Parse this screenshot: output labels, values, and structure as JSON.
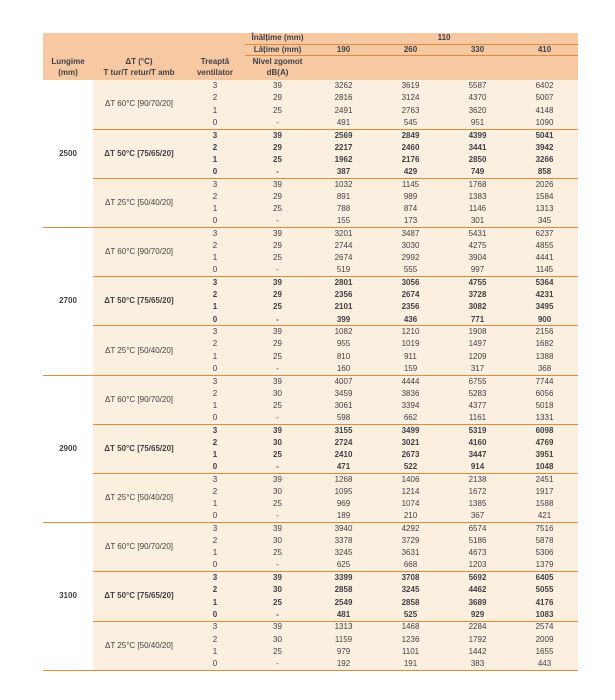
{
  "table": {
    "inaltime_label": "Înălțime (mm)",
    "inaltime_value": "110",
    "latime_label": "Lățime (mm)",
    "width_columns": [
      "190",
      "260",
      "330",
      "410"
    ],
    "col_headers": [
      [
        "Lungime",
        "(mm)"
      ],
      [
        "ΔT (°C)",
        "T tur/T retur/T amb"
      ],
      [
        "Treaptă",
        "ventilator"
      ],
      [
        "Nivel zgomot",
        "dB(A)"
      ]
    ],
    "groups": [
      {
        "lungime": "2500",
        "blocks": [
          {
            "label": "ΔT 60°C [90/70/20]",
            "bold": false,
            "rows": [
              {
                "t": "3",
                "z": "39",
                "v": [
                  "3262",
                  "3619",
                  "5587",
                  "6402"
                ]
              },
              {
                "t": "2",
                "z": "29",
                "v": [
                  "2816",
                  "3124",
                  "4370",
                  "5007"
                ]
              },
              {
                "t": "1",
                "z": "25",
                "v": [
                  "2491",
                  "2763",
                  "3620",
                  "4148"
                ]
              },
              {
                "t": "0",
                "z": "-",
                "v": [
                  "491",
                  "545",
                  "951",
                  "1090"
                ]
              }
            ]
          },
          {
            "label": "ΔT 50°C [75/65/20]",
            "bold": true,
            "rows": [
              {
                "t": "3",
                "z": "39",
                "v": [
                  "2569",
                  "2849",
                  "4399",
                  "5041"
                ]
              },
              {
                "t": "2",
                "z": "29",
                "v": [
                  "2217",
                  "2460",
                  "3441",
                  "3942"
                ]
              },
              {
                "t": "1",
                "z": "25",
                "v": [
                  "1962",
                  "2176",
                  "2850",
                  "3266"
                ]
              },
              {
                "t": "0",
                "z": "-",
                "v": [
                  "387",
                  "429",
                  "749",
                  "858"
                ]
              }
            ]
          },
          {
            "label": "ΔT 25°C [50/40/20]",
            "bold": false,
            "rows": [
              {
                "t": "3",
                "z": "39",
                "v": [
                  "1032",
                  "1145",
                  "1768",
                  "2026"
                ]
              },
              {
                "t": "2",
                "z": "29",
                "v": [
                  "891",
                  "989",
                  "1383",
                  "1584"
                ]
              },
              {
                "t": "1",
                "z": "25",
                "v": [
                  "788",
                  "874",
                  "1146",
                  "1313"
                ]
              },
              {
                "t": "0",
                "z": "-",
                "v": [
                  "155",
                  "173",
                  "301",
                  "345"
                ]
              }
            ]
          }
        ]
      },
      {
        "lungime": "2700",
        "blocks": [
          {
            "label": "ΔT 60°C [90/70/20]",
            "bold": false,
            "rows": [
              {
                "t": "3",
                "z": "39",
                "v": [
                  "3201",
                  "3487",
                  "5431",
                  "6237"
                ]
              },
              {
                "t": "2",
                "z": "29",
                "v": [
                  "2744",
                  "3030",
                  "4275",
                  "4855"
                ]
              },
              {
                "t": "1",
                "z": "25",
                "v": [
                  "2674",
                  "2992",
                  "3904",
                  "4441"
                ]
              },
              {
                "t": "0",
                "z": "-",
                "v": [
                  "519",
                  "555",
                  "997",
                  "1145"
                ]
              }
            ]
          },
          {
            "label": "ΔT 50°C [75/65/20]",
            "bold": true,
            "rows": [
              {
                "t": "3",
                "z": "39",
                "v": [
                  "2801",
                  "3056",
                  "4755",
                  "5364"
                ]
              },
              {
                "t": "2",
                "z": "29",
                "v": [
                  "2356",
                  "2674",
                  "3728",
                  "4231"
                ]
              },
              {
                "t": "1",
                "z": "25",
                "v": [
                  "2101",
                  "2356",
                  "3082",
                  "3495"
                ]
              },
              {
                "t": "0",
                "z": "-",
                "v": [
                  "399",
                  "436",
                  "771",
                  "900"
                ]
              }
            ]
          },
          {
            "label": "ΔT 25°C [50/40/20]",
            "bold": false,
            "rows": [
              {
                "t": "3",
                "z": "39",
                "v": [
                  "1082",
                  "1210",
                  "1908",
                  "2156"
                ]
              },
              {
                "t": "2",
                "z": "29",
                "v": [
                  "955",
                  "1019",
                  "1497",
                  "1682"
                ]
              },
              {
                "t": "1",
                "z": "25",
                "v": [
                  "810",
                  "911",
                  "1209",
                  "1388"
                ]
              },
              {
                "t": "0",
                "z": "-",
                "v": [
                  "160",
                  "159",
                  "317",
                  "368"
                ]
              }
            ]
          }
        ]
      },
      {
        "lungime": "2900",
        "blocks": [
          {
            "label": "ΔT 60°C [90/70/20]",
            "bold": false,
            "rows": [
              {
                "t": "3",
                "z": "39",
                "v": [
                  "4007",
                  "4444",
                  "6755",
                  "7744"
                ]
              },
              {
                "t": "2",
                "z": "30",
                "v": [
                  "3459",
                  "3836",
                  "5283",
                  "6056"
                ]
              },
              {
                "t": "1",
                "z": "25",
                "v": [
                  "3061",
                  "3394",
                  "4377",
                  "5018"
                ]
              },
              {
                "t": "0",
                "z": "-",
                "v": [
                  "598",
                  "662",
                  "1161",
                  "1331"
                ]
              }
            ]
          },
          {
            "label": "ΔT 50°C [75/65/20]",
            "bold": true,
            "rows": [
              {
                "t": "3",
                "z": "39",
                "v": [
                  "3155",
                  "3499",
                  "5319",
                  "6098"
                ]
              },
              {
                "t": "2",
                "z": "30",
                "v": [
                  "2724",
                  "3021",
                  "4160",
                  "4769"
                ]
              },
              {
                "t": "1",
                "z": "25",
                "v": [
                  "2410",
                  "2673",
                  "3447",
                  "3951"
                ]
              },
              {
                "t": "0",
                "z": "-",
                "v": [
                  "471",
                  "522",
                  "914",
                  "1048"
                ]
              }
            ]
          },
          {
            "label": "ΔT 25°C [50/40/20]",
            "bold": false,
            "rows": [
              {
                "t": "3",
                "z": "39",
                "v": [
                  "1268",
                  "1406",
                  "2138",
                  "2451"
                ]
              },
              {
                "t": "2",
                "z": "30",
                "v": [
                  "1095",
                  "1214",
                  "1672",
                  "1917"
                ]
              },
              {
                "t": "1",
                "z": "25",
                "v": [
                  "969",
                  "1074",
                  "1385",
                  "1588"
                ]
              },
              {
                "t": "0",
                "z": "-",
                "v": [
                  "189",
                  "210",
                  "367",
                  "421"
                ]
              }
            ]
          }
        ]
      },
      {
        "lungime": "3100",
        "blocks": [
          {
            "label": "ΔT 60°C [90/70/20]",
            "bold": false,
            "rows": [
              {
                "t": "3",
                "z": "39",
                "v": [
                  "3940",
                  "4292",
                  "6574",
                  "7516"
                ]
              },
              {
                "t": "2",
                "z": "30",
                "v": [
                  "3378",
                  "3729",
                  "5186",
                  "5878"
                ]
              },
              {
                "t": "1",
                "z": "25",
                "v": [
                  "3245",
                  "3631",
                  "4673",
                  "5306"
                ]
              },
              {
                "t": "0",
                "z": "-",
                "v": [
                  "625",
                  "668",
                  "1203",
                  "1379"
                ]
              }
            ]
          },
          {
            "label": "ΔT 50°C [75/65/20]",
            "bold": true,
            "rows": [
              {
                "t": "3",
                "z": "39",
                "v": [
                  "3399",
                  "3708",
                  "5692",
                  "6405"
                ]
              },
              {
                "t": "2",
                "z": "30",
                "v": [
                  "2858",
                  "3245",
                  "4462",
                  "5055"
                ]
              },
              {
                "t": "1",
                "z": "25",
                "v": [
                  "2549",
                  "2858",
                  "3689",
                  "4176"
                ]
              },
              {
                "t": "0",
                "z": "-",
                "v": [
                  "481",
                  "525",
                  "929",
                  "1083"
                ]
              }
            ]
          },
          {
            "label": "ΔT 25°C [50/40/20]",
            "bold": false,
            "rows": [
              {
                "t": "3",
                "z": "39",
                "v": [
                  "1313",
                  "1468",
                  "2284",
                  "2574"
                ]
              },
              {
                "t": "2",
                "z": "30",
                "v": [
                  "1159",
                  "1236",
                  "1792",
                  "2009"
                ]
              },
              {
                "t": "1",
                "z": "25",
                "v": [
                  "979",
                  "1101",
                  "1442",
                  "1655"
                ]
              },
              {
                "t": "0",
                "z": "-",
                "v": [
                  "192",
                  "191",
                  "383",
                  "443"
                ]
              }
            ]
          }
        ]
      }
    ]
  },
  "colors": {
    "header_bg": "#f6c9a2",
    "body_bg": "#fbf0df",
    "line": "#e6893b",
    "text": "#3f3f47"
  }
}
